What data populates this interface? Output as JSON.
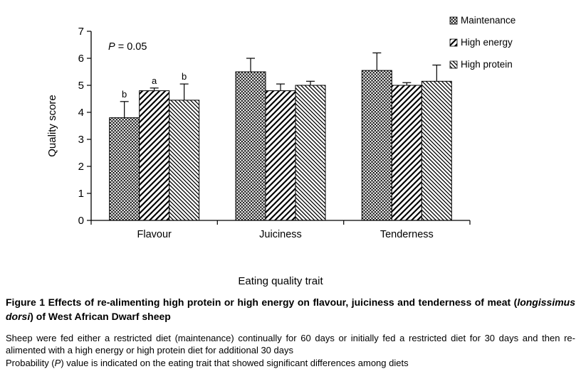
{
  "chart_data": {
    "type": "bar",
    "title": "",
    "xlabel": "Eating quality trait",
    "ylabel": "Quality score",
    "ylim": [
      0,
      7
    ],
    "yticks": [
      0,
      1,
      2,
      3,
      4,
      5,
      6,
      7
    ],
    "grid": false,
    "legend_position": "top-right",
    "annotation": {
      "italic": "P",
      "rest": " = 0.05"
    },
    "categories": [
      "Flavour",
      "Juiciness",
      "Tenderness"
    ],
    "series": [
      {
        "name": "Maintenance",
        "pattern": "checker",
        "values": [
          3.8,
          5.5,
          5.55
        ],
        "errors": [
          0.6,
          0.5,
          0.65
        ],
        "letters": [
          "b",
          "",
          ""
        ]
      },
      {
        "name": "High energy",
        "pattern": "diag-up",
        "values": [
          4.8,
          4.8,
          5.0
        ],
        "errors": [
          0.1,
          0.25,
          0.1
        ],
        "letters": [
          "a",
          "",
          ""
        ]
      },
      {
        "name": "High protein",
        "pattern": "diag-down",
        "values": [
          4.45,
          5.0,
          5.15
        ],
        "errors": [
          0.6,
          0.15,
          0.6
        ],
        "letters": [
          "b",
          "",
          ""
        ]
      }
    ]
  },
  "caption": {
    "prefix": "Figure 1",
    "before_italic": " Effects of re-alimenting high protein or high energy on flavour, juiciness and tenderness of meat (",
    "italic": "longissimus dorsi",
    "after_italic": ") of West African Dwarf sheep"
  },
  "notes": {
    "line1": "Sheep were fed either a restricted diet (maintenance) continually for 60 days or initially fed a restricted diet for 30 days and then re-alimented with a high energy or high protein diet for additional 30 days",
    "line2_before": "Probability (",
    "line2_italic": "P",
    "line2_after": ") value is indicated on the eating trait that showed significant differences among diets"
  },
  "colors": {
    "foreground": "#000000",
    "background": "#ffffff"
  }
}
